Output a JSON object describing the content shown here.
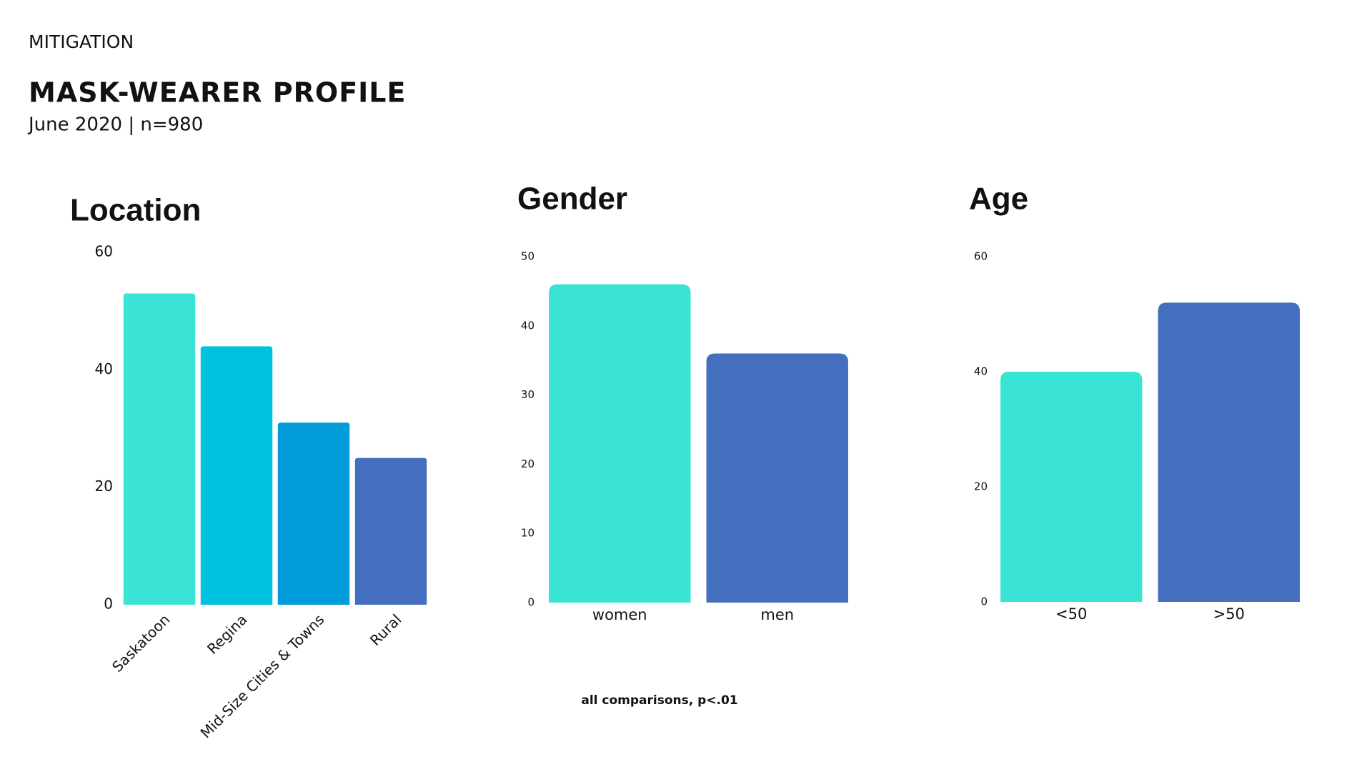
{
  "header": {
    "section": "MITIGATION",
    "title": "MASK-WEARER PROFILE",
    "subtitle": "June 2020 |  n=980"
  },
  "footnote": "all comparisons, p<.01",
  "chart_data": [
    {
      "type": "bar",
      "title": "Location",
      "categories": [
        "Saskatoon",
        "Regina",
        "Mid-Size Cities & Towns",
        "Rural"
      ],
      "values": [
        53,
        44,
        31,
        25
      ],
      "colors": [
        "#3ae4d4",
        "#00c1de",
        "#009bd8",
        "#446fbf"
      ],
      "ylim": [
        0,
        60
      ],
      "yticks": [
        0,
        20,
        40,
        60
      ]
    },
    {
      "type": "bar",
      "title": "Gender",
      "categories": [
        "women",
        "men"
      ],
      "values": [
        46,
        36
      ],
      "colors": [
        "#3ae4d4",
        "#446fbf"
      ],
      "ylim": [
        0,
        50
      ],
      "yticks": [
        0,
        10,
        20,
        30,
        40,
        50
      ]
    },
    {
      "type": "bar",
      "title": "Age",
      "categories": [
        "<50",
        ">50"
      ],
      "values": [
        40,
        52
      ],
      "colors": [
        "#3ae4d4",
        "#446fbf"
      ],
      "ylim": [
        0,
        60
      ],
      "yticks": [
        0,
        20,
        40,
        60
      ]
    }
  ]
}
